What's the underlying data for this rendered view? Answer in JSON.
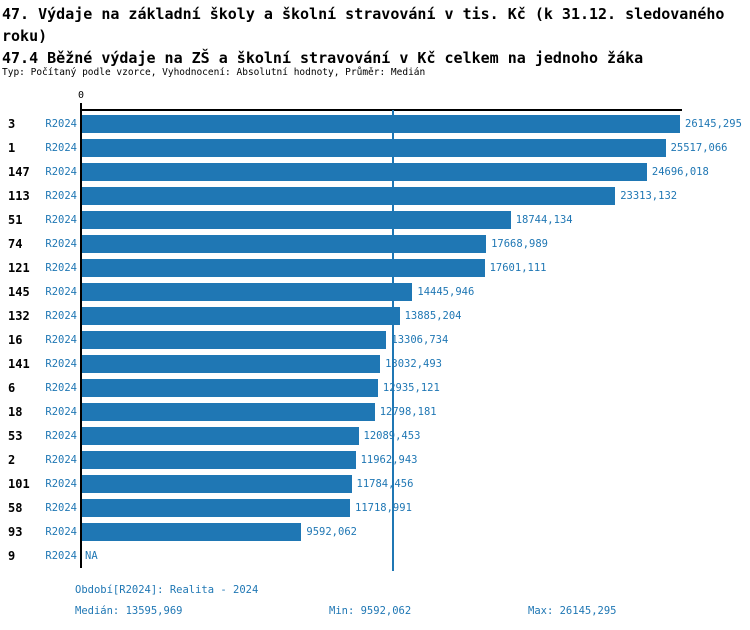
{
  "colors": {
    "accent": "#1F77B4",
    "bar": "#1F77B4",
    "axis": "#000000"
  },
  "header": {
    "title_line1": "47. Výdaje na základní školy a školní stravování v tis. Kč (k 31.12. sledovaného roku)",
    "title_line2": "47.4 Běžné výdaje na ZŠ a školní stravování v Kč celkem na jednoho žáka",
    "subtitle": "Typ: Počítaný podle vzorce, Vyhodnocení: Absolutní hodnoty, Průměr: Medián"
  },
  "axis": {
    "zero_label": "0"
  },
  "chart_data": {
    "type": "bar",
    "orientation": "horizontal",
    "series_label": "R2024",
    "categories": [
      "3",
      "1",
      "147",
      "113",
      "51",
      "74",
      "121",
      "145",
      "132",
      "16",
      "141",
      "6",
      "18",
      "53",
      "2",
      "101",
      "58",
      "93",
      "9"
    ],
    "values": [
      26145.295,
      25517.066,
      24696.018,
      23313.132,
      18744.134,
      17668.989,
      17601.111,
      14445.946,
      13885.204,
      13306.734,
      13032.493,
      12935.121,
      12798.181,
      12089.453,
      11962.943,
      11784.456,
      11718.991,
      9592.062,
      null
    ],
    "value_labels": [
      "26145,295",
      "25517,066",
      "24696,018",
      "23313,132",
      "18744,134",
      "17668,989",
      "17601,111",
      "14445,946",
      "13885,204",
      "13306,734",
      "13032,493",
      "12935,121",
      "12798,181",
      "12089,453",
      "11962,943",
      "11784,456",
      "11718,991",
      "9592,062",
      "NA"
    ],
    "xlim": [
      0,
      26145.295
    ],
    "median_value": 13595.969,
    "min_value": 9592.062,
    "max_value": 26145.295,
    "grid": false,
    "legend_position": "bottom"
  },
  "footer": {
    "period_label": "Období[R2024]: Realita - 2024",
    "median_label": "Medián: 13595,969",
    "min_label": "Min: 9592,062",
    "max_label": "Max: 26145,295"
  }
}
